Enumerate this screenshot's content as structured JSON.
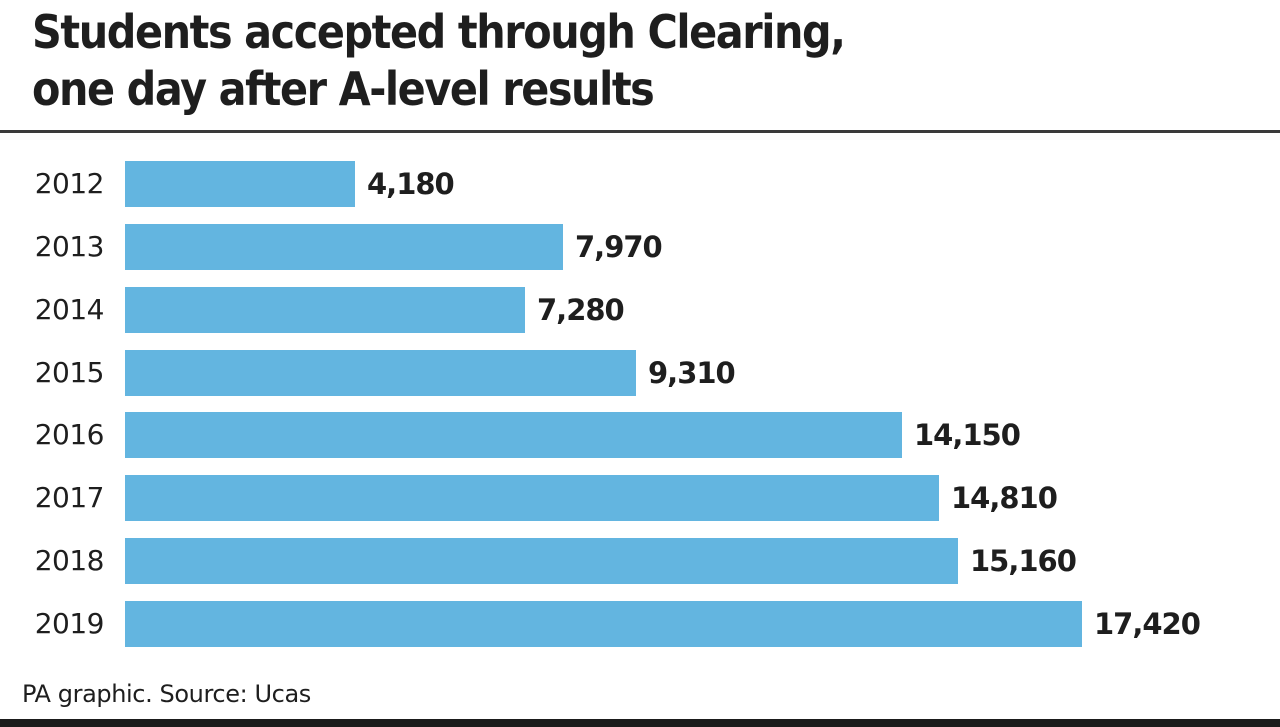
{
  "header": {
    "title_line1": "Students accepted through Clearing,",
    "title_line2": "one day after A-level results"
  },
  "footer": {
    "source": "PA graphic. Source: Ucas"
  },
  "colors": {
    "bar": "#63b5e0",
    "text": "#1e1e1e",
    "rule": "#3a3a3a"
  },
  "chart_data": {
    "type": "bar",
    "orientation": "horizontal",
    "title": "Students accepted through Clearing, one day after A-level results",
    "categories": [
      "2012",
      "2013",
      "2014",
      "2015",
      "2016",
      "2017",
      "2018",
      "2019"
    ],
    "values": [
      4180,
      7970,
      7280,
      9310,
      14150,
      14810,
      15160,
      17420
    ],
    "value_labels": [
      "4,180",
      "7,970",
      "7,280",
      "9,310",
      "14,150",
      "14,810",
      "15,160",
      "17,420"
    ],
    "xlabel": "",
    "ylabel": "",
    "xlim": [
      0,
      17420
    ],
    "grid": false,
    "legend": null,
    "source": "PA graphic. Source: Ucas"
  }
}
